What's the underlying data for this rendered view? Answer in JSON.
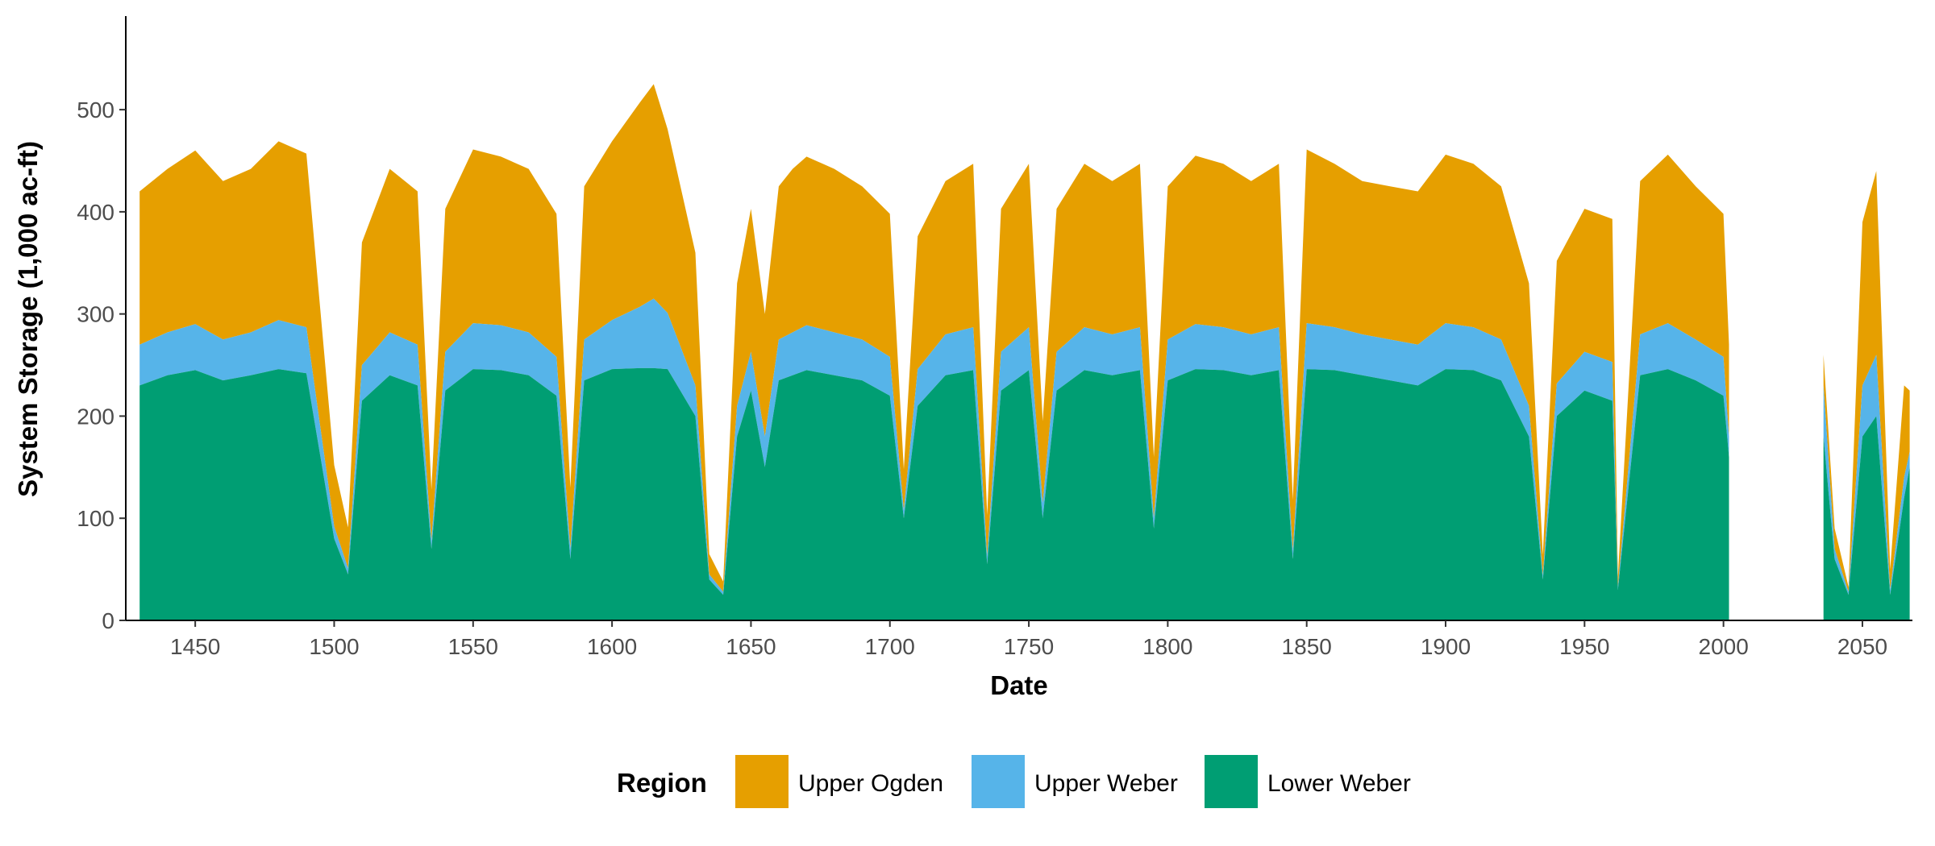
{
  "chart_data": {
    "type": "area",
    "stacked": true,
    "xlabel": "Date",
    "ylabel": "System Storage (1,000 ac-ft)",
    "xlim": [
      1425,
      2068
    ],
    "ylim": [
      0,
      590
    ],
    "x_ticks": [
      1450,
      1500,
      1550,
      1600,
      1650,
      1700,
      1750,
      1800,
      1850,
      1900,
      1950,
      2000,
      2050
    ],
    "y_ticks": [
      0,
      100,
      200,
      300,
      400,
      500
    ],
    "grid": false,
    "legend": {
      "title": "Region",
      "placement": "bottom"
    },
    "data_gap": [
      2003,
      2035
    ],
    "stack_order": [
      "Lower Weber",
      "Upper Weber",
      "Upper Ogden"
    ],
    "series": [
      {
        "name": "Upper Ogden",
        "color": "#E69F00",
        "note_unit": "1,000 ac-ft",
        "x": [
          1430,
          1440,
          1450,
          1460,
          1470,
          1480,
          1490,
          1500,
          1505,
          1510,
          1520,
          1530,
          1535,
          1540,
          1550,
          1560,
          1570,
          1580,
          1585,
          1590,
          1600,
          1610,
          1615,
          1620,
          1630,
          1635,
          1640,
          1645,
          1650,
          1655,
          1660,
          1665,
          1670,
          1680,
          1690,
          1700,
          1705,
          1710,
          1720,
          1730,
          1735,
          1740,
          1750,
          1755,
          1760,
          1770,
          1780,
          1790,
          1795,
          1800,
          1810,
          1820,
          1830,
          1840,
          1845,
          1850,
          1860,
          1870,
          1880,
          1890,
          1900,
          1910,
          1920,
          1930,
          1935,
          1940,
          1950,
          1960,
          1962,
          1970,
          1980,
          1990,
          2000,
          2002,
          2036,
          2040,
          2045,
          2050,
          2055,
          2060,
          2065,
          2067
        ],
        "values": [
          150,
          160,
          170,
          155,
          160,
          175,
          170,
          60,
          40,
          120,
          160,
          150,
          50,
          140,
          170,
          165,
          160,
          140,
          60,
          150,
          175,
          200,
          210,
          180,
          130,
          20,
          10,
          120,
          140,
          120,
          150,
          160,
          165,
          160,
          150,
          140,
          40,
          130,
          150,
          160,
          40,
          140,
          160,
          80,
          140,
          160,
          150,
          160,
          60,
          150,
          165,
          160,
          150,
          160,
          50,
          170,
          160,
          150,
          150,
          150,
          165,
          160,
          150,
          120,
          20,
          120,
          140,
          140,
          10,
          150,
          165,
          150,
          140,
          90,
          30,
          20,
          5,
          160,
          180,
          20,
          90,
          60
        ]
      },
      {
        "name": "Upper Weber",
        "color": "#56B4E9",
        "x": [
          1430,
          1440,
          1450,
          1460,
          1470,
          1480,
          1490,
          1500,
          1505,
          1510,
          1520,
          1530,
          1535,
          1540,
          1550,
          1560,
          1570,
          1580,
          1585,
          1590,
          1600,
          1610,
          1615,
          1620,
          1630,
          1635,
          1640,
          1645,
          1650,
          1655,
          1660,
          1665,
          1670,
          1680,
          1690,
          1700,
          1705,
          1710,
          1720,
          1730,
          1735,
          1740,
          1750,
          1755,
          1760,
          1770,
          1780,
          1790,
          1795,
          1800,
          1810,
          1820,
          1830,
          1840,
          1845,
          1850,
          1860,
          1870,
          1880,
          1890,
          1900,
          1910,
          1920,
          1930,
          1935,
          1940,
          1950,
          1960,
          1962,
          1970,
          1980,
          1990,
          2000,
          2002,
          2036,
          2040,
          2045,
          2050,
          2055,
          2060,
          2065,
          2067
        ],
        "values": [
          40,
          42,
          45,
          40,
          42,
          48,
          45,
          12,
          6,
          35,
          42,
          40,
          8,
          38,
          45,
          44,
          42,
          38,
          10,
          40,
          48,
          60,
          68,
          55,
          30,
          5,
          3,
          30,
          38,
          30,
          40,
          42,
          44,
          42,
          40,
          38,
          8,
          36,
          40,
          42,
          8,
          38,
          42,
          15,
          38,
          42,
          40,
          42,
          10,
          40,
          44,
          42,
          40,
          42,
          8,
          45,
          42,
          40,
          40,
          40,
          45,
          42,
          40,
          30,
          4,
          32,
          38,
          38,
          3,
          40,
          45,
          40,
          38,
          20,
          50,
          10,
          3,
          50,
          60,
          5,
          20,
          15
        ]
      },
      {
        "name": "Lower Weber",
        "color": "#009E73",
        "x": [
          1430,
          1440,
          1450,
          1460,
          1470,
          1480,
          1490,
          1500,
          1505,
          1510,
          1520,
          1530,
          1535,
          1540,
          1550,
          1560,
          1570,
          1580,
          1585,
          1590,
          1600,
          1610,
          1615,
          1620,
          1630,
          1635,
          1640,
          1645,
          1650,
          1655,
          1660,
          1665,
          1670,
          1680,
          1690,
          1700,
          1705,
          1710,
          1720,
          1730,
          1735,
          1740,
          1750,
          1755,
          1760,
          1770,
          1780,
          1790,
          1795,
          1800,
          1810,
          1820,
          1830,
          1840,
          1845,
          1850,
          1860,
          1870,
          1880,
          1890,
          1900,
          1910,
          1920,
          1930,
          1935,
          1940,
          1950,
          1960,
          1962,
          1970,
          1980,
          1990,
          2000,
          2002,
          2036,
          2040,
          2045,
          2050,
          2055,
          2060,
          2065,
          2067
        ],
        "values": [
          230,
          240,
          245,
          235,
          240,
          246,
          242,
          80,
          45,
          215,
          240,
          230,
          70,
          225,
          246,
          245,
          240,
          220,
          60,
          235,
          246,
          247,
          247,
          246,
          200,
          40,
          25,
          180,
          225,
          150,
          235,
          240,
          245,
          240,
          235,
          220,
          100,
          210,
          240,
          245,
          55,
          225,
          245,
          100,
          225,
          245,
          240,
          245,
          90,
          235,
          246,
          245,
          240,
          245,
          60,
          246,
          245,
          240,
          235,
          230,
          246,
          245,
          235,
          180,
          40,
          200,
          225,
          215,
          30,
          240,
          246,
          235,
          220,
          160,
          180,
          60,
          25,
          180,
          200,
          25,
          120,
          150
        ]
      }
    ]
  }
}
